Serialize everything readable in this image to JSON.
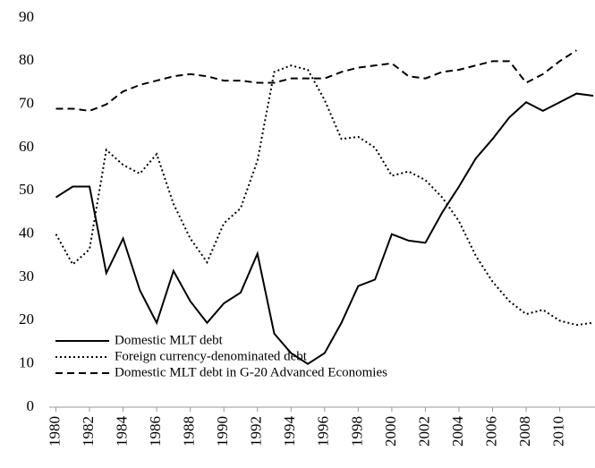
{
  "chart_data": {
    "type": "line",
    "x": [
      1980,
      1981,
      1982,
      1983,
      1984,
      1985,
      1986,
      1987,
      1988,
      1989,
      1990,
      1991,
      1992,
      1993,
      1994,
      1995,
      1996,
      1997,
      1998,
      1999,
      2000,
      2001,
      2002,
      2003,
      2004,
      2005,
      2006,
      2007,
      2008,
      2009,
      2010,
      2011,
      2012
    ],
    "xlim": [
      1979.6,
      2012.1
    ],
    "xticks": [
      1980,
      1982,
      1984,
      1986,
      1988,
      1990,
      1992,
      1994,
      1996,
      1998,
      2000,
      2002,
      2004,
      2006,
      2008,
      2010
    ],
    "ylim": [
      0,
      90
    ],
    "yticks": [
      0,
      10,
      20,
      30,
      40,
      50,
      60,
      70,
      80,
      90
    ],
    "legend": "lower left",
    "series": [
      {
        "name": "Domestic MLT debt",
        "color": "#000000",
        "dash": "solid",
        "values": [
          48.5,
          51,
          51,
          31,
          39,
          27,
          19.5,
          31.5,
          24.5,
          19.5,
          24,
          26.5,
          35.5,
          17,
          12.5,
          10,
          12.5,
          19.5,
          28,
          29.5,
          40,
          38.5,
          38,
          45,
          51,
          57.5,
          62,
          67,
          70.5,
          68.5,
          70.5,
          72.5,
          72
        ]
      },
      {
        "name": "Foreign currency-denominated debt",
        "color": "#000000",
        "dash": "dotted",
        "values": [
          40,
          33,
          36.5,
          59.5,
          56,
          54,
          58.5,
          47,
          39,
          33.5,
          42.5,
          46,
          57,
          77.5,
          79,
          78,
          71,
          62,
          62.5,
          60,
          53.5,
          54.5,
          52.5,
          48.5,
          43,
          35,
          29,
          24.5,
          21.5,
          22.5,
          20,
          19,
          19.5
        ]
      },
      {
        "name": "Domestic MLT debt in G-20 Advanced Economies",
        "color": "#000000",
        "dash": "dashed",
        "values": [
          69,
          69,
          68.5,
          70,
          73,
          74.5,
          75.5,
          76.5,
          77,
          76.5,
          75.5,
          75.5,
          75,
          75,
          76,
          76,
          76,
          77.5,
          78.5,
          79,
          79.5,
          76.5,
          76,
          77.5,
          78,
          79,
          80,
          80,
          75,
          77,
          80,
          82.5,
          null
        ]
      }
    ]
  }
}
